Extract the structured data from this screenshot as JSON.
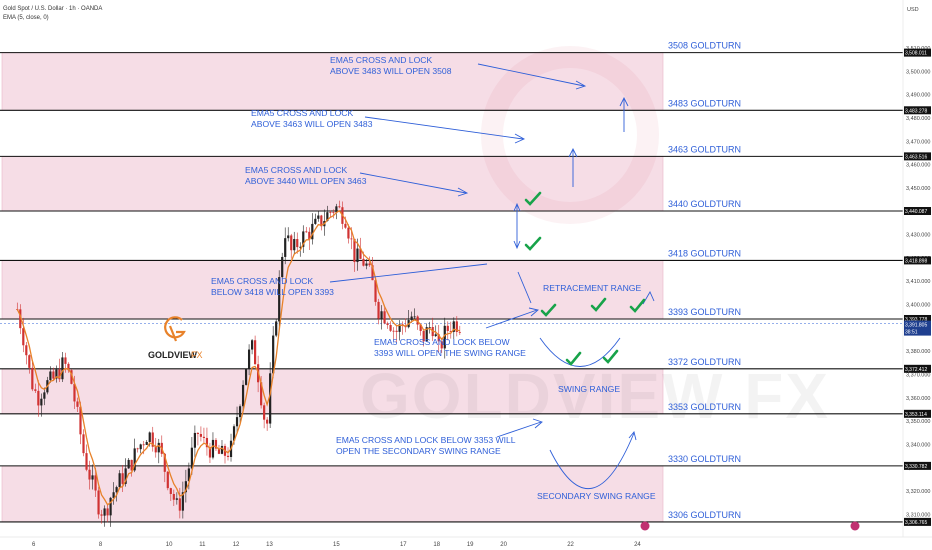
{
  "header": {
    "symbol_line": "Gold Spot / U.S. Dollar · 1h · OANDA",
    "indicator_line": "EMA (5, close, 0)",
    "currency": "USD"
  },
  "colors": {
    "zone_fill": "#f6dde6",
    "zone_border": "#e9b6c8",
    "level_line": "#111111",
    "annotation": "#2f5fd8",
    "check": "#18a34a",
    "bull": "#222222",
    "bear": "#d03232",
    "ema": "#e8822a",
    "logo_orange": "#e8822a"
  },
  "logo": {
    "brand": "GOLDVIEW",
    "suffix": "FX"
  },
  "watermark": "GOLDVIEW FX",
  "chart_data": {
    "type": "candlestick",
    "title": "Gold Spot / U.S. Dollar · 1h · OANDA",
    "ylim": [
      3302,
      3522
    ],
    "y_ticks": [
      3310,
      3320,
      3330,
      3340,
      3350,
      3360,
      3370,
      3380,
      3390,
      3400,
      3410,
      3420,
      3430,
      3440,
      3450,
      3460,
      3470,
      3480,
      3490,
      3500,
      3510
    ],
    "x_ticks": [
      {
        "label": "6",
        "day": 6
      },
      {
        "label": "8",
        "day": 8
      },
      {
        "label": "10",
        "day": 10
      },
      {
        "label": "11",
        "day": 11
      },
      {
        "label": "12",
        "day": 12
      },
      {
        "label": "13",
        "day": 13
      },
      {
        "label": "15",
        "day": 15
      },
      {
        "label": "17",
        "day": 17
      },
      {
        "label": "18",
        "day": 18
      },
      {
        "label": "19",
        "day": 19
      },
      {
        "label": "20",
        "day": 20
      },
      {
        "label": "22",
        "day": 22
      },
      {
        "label": "24",
        "day": 24
      }
    ],
    "levels": [
      {
        "value": 3508.011,
        "label": "3508 GOLDTURN",
        "price_tag": "3,508.011"
      },
      {
        "value": 3483.278,
        "label": "3483 GOLDTURN",
        "price_tag": "3,483.278"
      },
      {
        "value": 3463.516,
        "label": "3463 GOLDTURN",
        "price_tag": "3,463.516"
      },
      {
        "value": 3440.087,
        "label": "3440 GOLDTURN",
        "price_tag": "3,440.087"
      },
      {
        "value": 3418.898,
        "label": "3418 GOLDTURN",
        "price_tag": "3,418.898"
      },
      {
        "value": 3393.778,
        "label": "3393 GOLDTURN",
        "price_tag": "3,393.778"
      },
      {
        "value": 3372.412,
        "label": "3372 GOLDTURN",
        "price_tag": "3,372.412"
      },
      {
        "value": 3353.114,
        "label": "3353 GOLDTURN",
        "price_tag": "3,353.114"
      },
      {
        "value": 3330.782,
        "label": "3330 GOLDTURN",
        "price_tag": "3,330.782"
      },
      {
        "value": 3306.765,
        "label": "3306 GOLDTURN",
        "price_tag": "3,306.765"
      }
    ],
    "zones": [
      [
        3483.278,
        3508.011
      ],
      [
        3440.087,
        3463.516
      ],
      [
        3393.778,
        3418.898
      ],
      [
        3353.114,
        3372.412
      ],
      [
        3306.765,
        3330.782
      ]
    ],
    "current_price": {
      "value": 3391.805,
      "label": "3,391.805",
      "countdown": "38:51"
    },
    "annotations": [
      {
        "lines": [
          "EMA5 CROSS AND LOCK",
          "ABOVE 3483 WILL OPEN 3508"
        ]
      },
      {
        "lines": [
          "EMA5 CROSS AND LOCK",
          "ABOVE 3463 WILL OPEN 3483"
        ]
      },
      {
        "lines": [
          "EMA5 CROSS AND LOCK",
          "ABOVE 3440 WILL OPEN 3463"
        ]
      },
      {
        "lines": [
          "EMA5 CROSS AND LOCK",
          "BELOW 3418 WILL OPEN 3393"
        ]
      },
      {
        "lines": [
          "EMA5 CROSS AND LOCK BELOW",
          "3393 WILL OPEN THE SWING RANGE"
        ]
      },
      {
        "lines": [
          "EMA5 CROSS AND LOCK BELOW 3353 WILL",
          "OPEN THE SECONDARY SWING RANGE"
        ]
      },
      {
        "lines": [
          "RETRACEMENT RANGE"
        ]
      },
      {
        "lines": [
          "SWING RANGE"
        ]
      },
      {
        "lines": [
          "SECONDARY SWING RANGE"
        ]
      }
    ],
    "price_path": [
      [
        5.5,
        3398
      ],
      [
        5.7,
        3385
      ],
      [
        5.9,
        3368
      ],
      [
        6.1,
        3360
      ],
      [
        6.3,
        3365
      ],
      [
        6.6,
        3368
      ],
      [
        6.9,
        3375
      ],
      [
        7.1,
        3368
      ],
      [
        7.3,
        3352
      ],
      [
        7.5,
        3335
      ],
      [
        7.7,
        3325
      ],
      [
        7.9,
        3315
      ],
      [
        8.1,
        3310
      ],
      [
        8.3,
        3318
      ],
      [
        8.6,
        3325
      ],
      [
        8.9,
        3332
      ],
      [
        9.1,
        3338
      ],
      [
        9.4,
        3345
      ],
      [
        9.7,
        3340
      ],
      [
        9.9,
        3330
      ],
      [
        10.1,
        3320
      ],
      [
        10.3,
        3312
      ],
      [
        10.5,
        3322
      ],
      [
        10.7,
        3335
      ],
      [
        10.9,
        3345
      ],
      [
        11.1,
        3340
      ],
      [
        11.3,
        3338
      ],
      [
        11.6,
        3335
      ],
      [
        11.9,
        3338
      ],
      [
        12.1,
        3355
      ],
      [
        12.3,
        3372
      ],
      [
        12.5,
        3382
      ],
      [
        12.65,
        3375
      ],
      [
        12.8,
        3360
      ],
      [
        12.95,
        3345
      ],
      [
        13.1,
        3375
      ],
      [
        13.25,
        3398
      ],
      [
        13.4,
        3420
      ],
      [
        13.5,
        3432
      ],
      [
        13.7,
        3422
      ],
      [
        13.95,
        3428
      ],
      [
        14.3,
        3432
      ],
      [
        14.6,
        3436
      ],
      [
        15.0,
        3442
      ],
      [
        15.3,
        3438
      ],
      [
        15.6,
        3420
      ],
      [
        15.9,
        3418
      ],
      [
        16.1,
        3410
      ],
      [
        16.3,
        3398
      ],
      [
        16.6,
        3394
      ],
      [
        16.8,
        3388
      ],
      [
        17.0,
        3391
      ],
      [
        17.3,
        3395
      ],
      [
        17.6,
        3385
      ],
      [
        17.9,
        3392
      ],
      [
        18.1,
        3380
      ],
      [
        18.3,
        3388
      ],
      [
        18.5,
        3392
      ],
      [
        18.75,
        3391.8
      ]
    ]
  }
}
